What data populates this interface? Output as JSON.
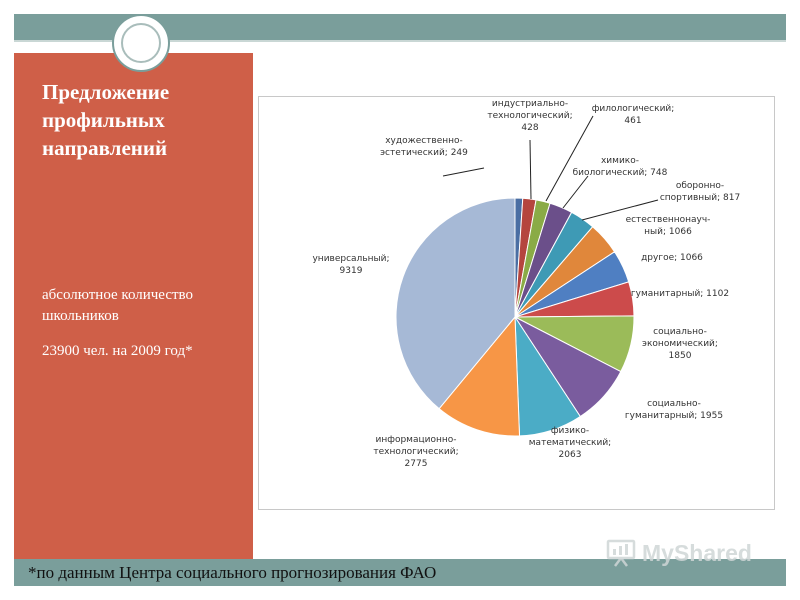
{
  "slide": {
    "title": "Предложение профильных направлений",
    "subtitle": "абсолютное количество школьников",
    "total": "23900 чел. на 2009 год*",
    "footnote": "*по данным Центра социального прогнозирования ФАО",
    "watermark": "MyShared"
  },
  "colors": {
    "top_band": "#7a9e9b",
    "left_panel": "#cf5f48"
  },
  "chart_data": {
    "type": "pie",
    "title": "",
    "slices": [
      {
        "label": "художественно-эстетический",
        "value": 249,
        "display_label": [
          "художественно-",
          "эстетический; 249"
        ],
        "color": "#4a6ea3"
      },
      {
        "label": "индустриально-технологический",
        "value": 428,
        "display_label": [
          "индустриально-",
          "технологический;",
          "428"
        ],
        "color": "#b5453e"
      },
      {
        "label": "филологический",
        "value": 461,
        "display_label": [
          "филологический;",
          "461"
        ],
        "color": "#8aab46"
      },
      {
        "label": "химико-биологический",
        "value": 748,
        "display_label": [
          "химико-",
          "биологический; 748"
        ],
        "color": "#6b4f8a"
      },
      {
        "label": "оборонно-спортивный",
        "value": 817,
        "display_label": [
          "оборонно-",
          "спортивный; 817"
        ],
        "color": "#3e9ab5"
      },
      {
        "label": "естественнонаучный",
        "value": 1066,
        "display_label": [
          "естественнонауч-",
          "ный; 1066"
        ],
        "color": "#e0873b"
      },
      {
        "label": "другое",
        "value": 1066,
        "display_label": [
          "другое; 1066"
        ],
        "color": "#4f7fc2"
      },
      {
        "label": "гуманитарный",
        "value": 1102,
        "display_label": [
          "гуманитарный; 1102"
        ],
        "color": "#cc4b4b"
      },
      {
        "label": "социально-экономический",
        "value": 1850,
        "display_label": [
          "социально-",
          "экономический;",
          "1850"
        ],
        "color": "#9bbb59"
      },
      {
        "label": "социально-гуманитарный",
        "value": 1955,
        "display_label": [
          "социально-",
          "гуманитарный; 1955"
        ],
        "color": "#7a5c9e"
      },
      {
        "label": "физико-математический",
        "value": 2063,
        "display_label": [
          "физико-",
          "математический;",
          "2063"
        ],
        "color": "#4bacc6"
      },
      {
        "label": "информационно-технологический",
        "value": 2775,
        "display_label": [
          "информационно-",
          "технологический;",
          "2775"
        ],
        "color": "#f79646"
      },
      {
        "label": "универсальный",
        "value": 9319,
        "display_label": [
          "универсальный;",
          "9319"
        ],
        "color": "#a6b9d6"
      }
    ]
  }
}
